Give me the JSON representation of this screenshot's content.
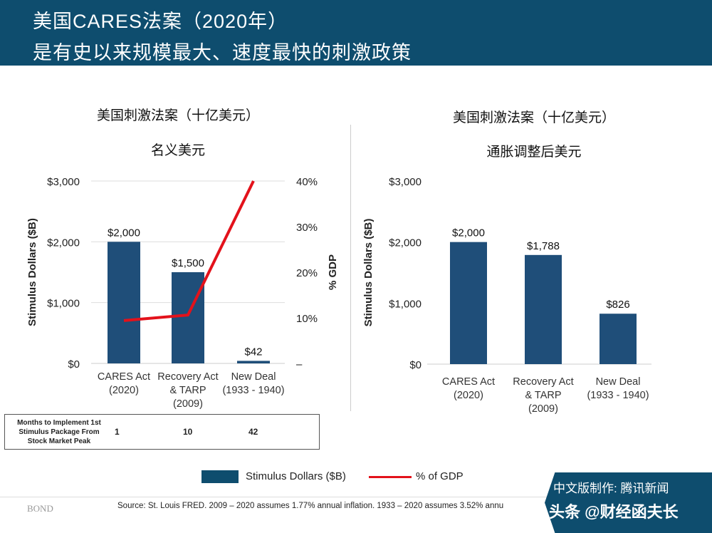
{
  "header": {
    "title_line1": "美国CARES法案（2020年）",
    "title_line2": "是有史以来规模最大、速度最快的刺激政策"
  },
  "left": {
    "title": "美国刺激法案（十亿美元）",
    "subtitle": "名义美元"
  },
  "right": {
    "title": "美国刺激法案（十亿美元）",
    "subtitle": "通胀调整后美元"
  },
  "chart_data": [
    {
      "type": "bar",
      "title": "美国刺激法案（十亿美元） 名义美元",
      "categories": [
        "CARES Act\n(2020)",
        "Recovery Act\n& TARP\n(2009)",
        "New Deal\n(1933 - 1940)"
      ],
      "series": [
        {
          "name": "Stimulus Dollars ($B)",
          "type": "bar",
          "values": [
            2000,
            1500,
            42
          ],
          "labels": [
            "$2,000",
            "$1,500",
            "$42"
          ],
          "color": "#1f4e79"
        },
        {
          "name": "% of GDP",
          "type": "line",
          "axis": "right",
          "values": [
            9.4,
            10.6,
            40
          ],
          "color": "#e3121b"
        }
      ],
      "ylabel": "Stimulus Dollars ($B)",
      "ylim": [
        0,
        3000
      ],
      "yticks": [
        "$0",
        "$1,000",
        "$2,000",
        "$3,000"
      ],
      "y2label": "% GDP",
      "y2lim": [
        0,
        40
      ],
      "y2ticks": [
        "–",
        "10%",
        "20%",
        "30%",
        "40%"
      ],
      "grid": true
    },
    {
      "type": "bar",
      "title": "美国刺激法案（十亿美元） 通胀调整后美元",
      "categories": [
        "CARES Act\n(2020)",
        "Recovery Act\n& TARP\n(2009)",
        "New Deal\n(1933 - 1940)"
      ],
      "series": [
        {
          "name": "Stimulus Dollars ($B)",
          "values": [
            2000,
            1788,
            826
          ],
          "labels": [
            "$2,000",
            "$1,788",
            "$826"
          ],
          "color": "#1f4e79"
        }
      ],
      "ylabel": "Stimulus Dollars ($B)",
      "ylim": [
        0,
        3000
      ],
      "yticks": [
        "$0",
        "$1,000",
        "$2,000",
        "$3,000"
      ],
      "grid": false
    }
  ],
  "table": {
    "label": "Months to Implement 1st Stimulus Package From Stock Market Peak",
    "values": [
      "1",
      "10",
      "42"
    ]
  },
  "legend": {
    "bar": "Stimulus Dollars ($B)",
    "line": "% of GDP"
  },
  "footer": {
    "logo": "BOND",
    "source": "Source: St. Louis FRED. 2009 – 2020 assumes 1.77% annual inflation. 1933 – 2020 assumes 3.52% annu"
  },
  "badge": {
    "line1": "中文版制作: 腾讯新闻",
    "line2": "头条 @财经函夫长"
  }
}
